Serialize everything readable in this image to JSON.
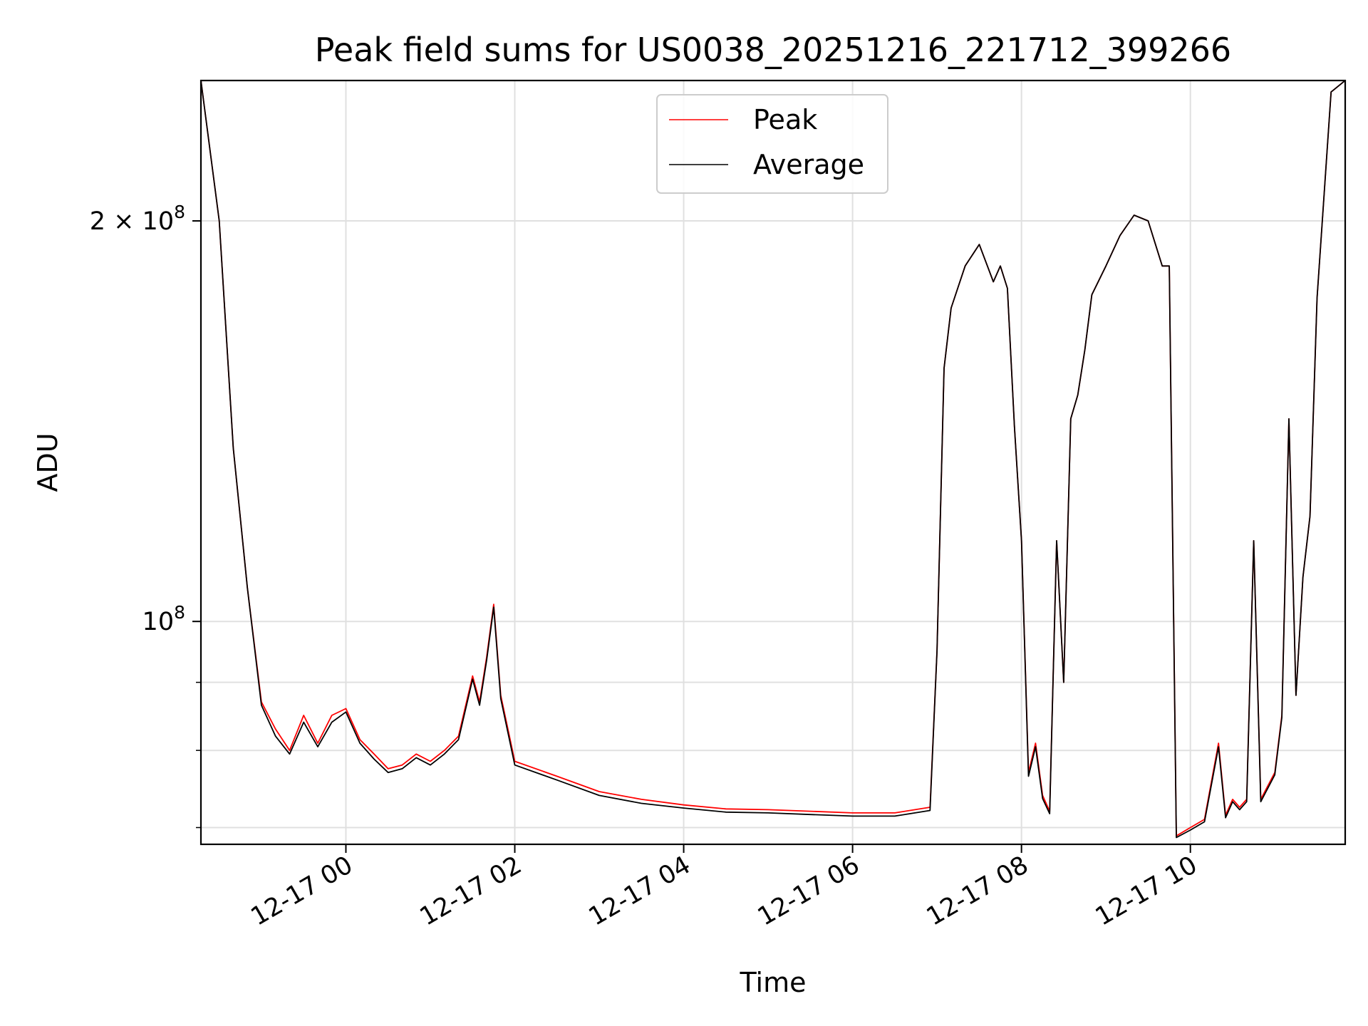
{
  "chart_data": {
    "type": "line",
    "title": "Peak field sums for US0038_20251216_221712_399266",
    "xlabel": "Time",
    "ylabel": "ADU",
    "yscale": "log",
    "grid": true,
    "legend_position": "top-center",
    "xlim": [
      "2025-12-16 22:17",
      "2025-12-17 11:50"
    ],
    "ylim": [
      68000000,
      255000000
    ],
    "x_ticks": [
      {
        "value": "2025-12-17 00:00",
        "label": "12-17 00"
      },
      {
        "value": "2025-12-17 02:00",
        "label": "12-17 02"
      },
      {
        "value": "2025-12-17 04:00",
        "label": "12-17 04"
      },
      {
        "value": "2025-12-17 06:00",
        "label": "12-17 06"
      },
      {
        "value": "2025-12-17 08:00",
        "label": "12-17 08"
      },
      {
        "value": "2025-12-17 10:00",
        "label": "12-17 10"
      }
    ],
    "y_ticks": [
      {
        "value": 100000000,
        "base": "10",
        "exp": "8",
        "mantissa": ""
      },
      {
        "value": 200000000,
        "base": "10",
        "exp": "8",
        "mantissa": "2 × "
      }
    ],
    "y_minor_ticks": [
      70000000,
      80000000,
      90000000
    ],
    "x": [
      "2025-12-16 22:17",
      "2025-12-16 22:30",
      "2025-12-16 22:40",
      "2025-12-16 22:50",
      "2025-12-16 23:00",
      "2025-12-16 23:10",
      "2025-12-16 23:20",
      "2025-12-16 23:30",
      "2025-12-16 23:40",
      "2025-12-16 23:50",
      "2025-12-17 00:00",
      "2025-12-17 00:10",
      "2025-12-17 00:20",
      "2025-12-17 00:30",
      "2025-12-17 00:40",
      "2025-12-17 00:50",
      "2025-12-17 01:00",
      "2025-12-17 01:10",
      "2025-12-17 01:20",
      "2025-12-17 01:30",
      "2025-12-17 01:35",
      "2025-12-17 01:40",
      "2025-12-17 01:45",
      "2025-12-17 01:50",
      "2025-12-17 02:00",
      "2025-12-17 02:30",
      "2025-12-17 03:00",
      "2025-12-17 03:30",
      "2025-12-17 04:00",
      "2025-12-17 04:30",
      "2025-12-17 05:00",
      "2025-12-17 05:30",
      "2025-12-17 06:00",
      "2025-12-17 06:30",
      "2025-12-17 06:55",
      "2025-12-17 07:00",
      "2025-12-17 07:05",
      "2025-12-17 07:10",
      "2025-12-17 07:20",
      "2025-12-17 07:30",
      "2025-12-17 07:40",
      "2025-12-17 07:45",
      "2025-12-17 07:50",
      "2025-12-17 07:55",
      "2025-12-17 08:00",
      "2025-12-17 08:05",
      "2025-12-17 08:10",
      "2025-12-17 08:15",
      "2025-12-17 08:20",
      "2025-12-17 08:25",
      "2025-12-17 08:30",
      "2025-12-17 08:35",
      "2025-12-17 08:40",
      "2025-12-17 08:45",
      "2025-12-17 08:50",
      "2025-12-17 09:00",
      "2025-12-17 09:10",
      "2025-12-17 09:20",
      "2025-12-17 09:30",
      "2025-12-17 09:40",
      "2025-12-17 09:45",
      "2025-12-17 09:50",
      "2025-12-17 10:00",
      "2025-12-17 10:10",
      "2025-12-17 10:20",
      "2025-12-17 10:25",
      "2025-12-17 10:30",
      "2025-12-17 10:35",
      "2025-12-17 10:40",
      "2025-12-17 10:45",
      "2025-12-17 10:50",
      "2025-12-17 11:00",
      "2025-12-17 11:05",
      "2025-12-17 11:10",
      "2025-12-17 11:15",
      "2025-12-17 11:20",
      "2025-12-17 11:25",
      "2025-12-17 11:30",
      "2025-12-17 11:40",
      "2025-12-17 11:50"
    ],
    "series": [
      {
        "name": "Peak",
        "color": "#ff0000",
        "values": [
          255000000,
          200000000,
          135000000,
          106000000,
          87000000,
          83000000,
          80000000,
          85000000,
          81000000,
          85000000,
          86000000,
          81500000,
          79500000,
          77500000,
          78000000,
          79500000,
          78500000,
          80000000,
          82000000,
          91000000,
          87000000,
          94000000,
          103000000,
          88000000,
          78500000,
          76500000,
          74500000,
          73500000,
          72800000,
          72300000,
          72200000,
          72000000,
          71800000,
          71800000,
          72500000,
          95000000,
          155000000,
          172000000,
          185000000,
          192000000,
          180000000,
          185000000,
          178000000,
          140000000,
          115000000,
          77000000,
          81000000,
          74000000,
          72000000,
          115000000,
          90000000,
          142000000,
          148000000,
          160000000,
          176000000,
          185000000,
          195000000,
          202000000,
          200000000,
          185000000,
          185000000,
          69000000,
          70000000,
          71000000,
          81000000,
          71500000,
          73500000,
          72500000,
          73500000,
          115000000,
          73500000,
          77000000,
          85000000,
          142000000,
          88000000,
          108000000,
          120000000,
          175000000,
          250000000,
          255000000
        ]
      },
      {
        "name": "Average",
        "color": "#000000",
        "values": [
          255000000,
          200000000,
          135000000,
          106000000,
          86500000,
          82000000,
          79500000,
          84000000,
          80500000,
          84000000,
          85500000,
          81000000,
          78800000,
          77000000,
          77500000,
          79000000,
          78000000,
          79500000,
          81500000,
          90500000,
          86500000,
          93500000,
          102500000,
          87500000,
          78000000,
          76000000,
          74000000,
          73000000,
          72400000,
          71900000,
          71800000,
          71600000,
          71400000,
          71400000,
          72100000,
          95000000,
          155000000,
          172000000,
          185000000,
          192000000,
          180000000,
          185000000,
          178000000,
          140000000,
          115000000,
          76500000,
          80500000,
          73600000,
          71700000,
          115000000,
          90000000,
          142000000,
          148000000,
          160000000,
          176000000,
          185000000,
          195000000,
          202000000,
          200000000,
          185000000,
          185000000,
          68800000,
          69700000,
          70700000,
          80500000,
          71200000,
          73200000,
          72200000,
          73200000,
          115000000,
          73200000,
          76700000,
          84700000,
          142000000,
          88000000,
          108000000,
          120000000,
          175000000,
          250000000,
          255000000
        ]
      }
    ],
    "colors": {
      "peak": "#ff0000",
      "average": "#000000",
      "grid": "#e0e0e0"
    }
  }
}
